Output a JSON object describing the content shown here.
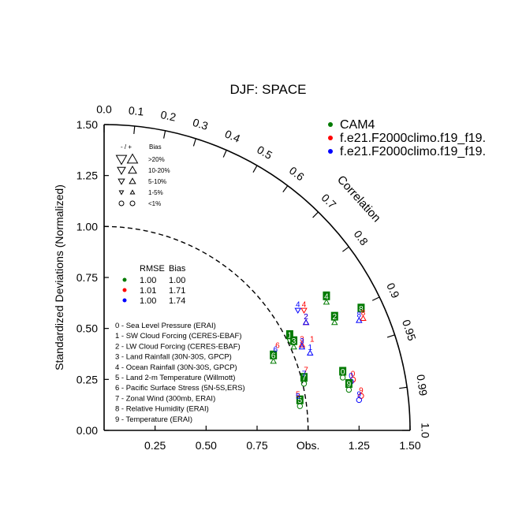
{
  "chart_data": {
    "type": "taylor",
    "title": "DJF: SPACE",
    "ylabel": "Standardized Deviations (Normalized)",
    "xlabel": "Obs.",
    "arc_label": "Correlation",
    "std_max": 1.5,
    "std_ticks": [
      {
        "value": 0.0,
        "label": "0.00"
      },
      {
        "value": 0.25,
        "label": "0.25"
      },
      {
        "value": 0.5,
        "label": "0.50"
      },
      {
        "value": 0.75,
        "label": "0.75"
      },
      {
        "value": 1.0,
        "label": "1.00"
      },
      {
        "value": 1.25,
        "label": "1.25"
      },
      {
        "value": 1.5,
        "label": "1.50"
      }
    ],
    "x_ticks": [
      {
        "value": 0.25,
        "label": "0.25"
      },
      {
        "value": 0.5,
        "label": "0.50"
      },
      {
        "value": 0.75,
        "label": "0.75"
      },
      {
        "value": 1.0,
        "label": "Obs."
      },
      {
        "value": 1.25,
        "label": "1.25"
      },
      {
        "value": 1.5,
        "label": "1.50"
      }
    ],
    "corr_ticks": [
      {
        "value": 0.0,
        "label": "0.0"
      },
      {
        "value": 0.1,
        "label": "0.1"
      },
      {
        "value": 0.2,
        "label": "0.2"
      },
      {
        "value": 0.3,
        "label": "0.3"
      },
      {
        "value": 0.4,
        "label": "0.4"
      },
      {
        "value": 0.5,
        "label": "0.5"
      },
      {
        "value": 0.6,
        "label": "0.6"
      },
      {
        "value": 0.7,
        "label": "0.7"
      },
      {
        "value": 0.8,
        "label": "0.8"
      },
      {
        "value": 0.9,
        "label": "0.9"
      },
      {
        "value": 0.95,
        "label": "0.95"
      },
      {
        "value": 0.99,
        "label": "0.99"
      },
      {
        "value": 1.0,
        "label": "1.0"
      }
    ],
    "legend": {
      "entries": [
        {
          "label": "CAM4",
          "color": "#007a00"
        },
        {
          "label": "f.e21.F2000climo.f19_f19.",
          "color": "#ff0000"
        },
        {
          "label": "f.e21.F2000climo.f19_f19.",
          "color": "#0000ff"
        }
      ]
    },
    "bias_key": {
      "header_sign": "- / +",
      "header_bias": "Bias",
      "rows": [
        {
          "label": ">20%",
          "kind": "tri",
          "size": 6.5
        },
        {
          "label": "10-20%",
          "kind": "tri",
          "size": 5
        },
        {
          "label": "5-10%",
          "kind": "tri",
          "size": 3.8
        },
        {
          "label": "1-5%",
          "kind": "tri",
          "size": 2.6
        },
        {
          "label": "<1%",
          "kind": "circle",
          "size": 3
        }
      ]
    },
    "stats_table": {
      "header_rmse": "RMSE",
      "header_bias": "Bias",
      "rows": [
        {
          "color": "#007a00",
          "rmse": "1.00",
          "bias": "1.00"
        },
        {
          "color": "#ff0000",
          "rmse": "1.01",
          "bias": "1.71"
        },
        {
          "color": "#0000ff",
          "rmse": "1.00",
          "bias": "1.74"
        }
      ]
    },
    "variables": [
      "0 - Sea Level Pressure (ERAI)",
      "1 - SW Cloud Forcing (CERES-EBAF)",
      "2 - LW Cloud Forcing (CERES-EBAF)",
      "3 - Land Rainfall (30N-30S, GPCP)",
      "4 - Ocean Rainfall (30N-30S, GPCP)",
      "5 - Land 2-m Temperature (Willmott)",
      "6 - Pacific Surface Stress (5N-5S,ERS)",
      "7 - Zonal Wind (300mb, ERAI)",
      "8 - Relative Humidity (ERAI)",
      "9 - Temperature (ERAI)"
    ],
    "points": [
      {
        "model": 0,
        "var": "0",
        "x": 1.17,
        "y": 0.29,
        "marker": "circle"
      },
      {
        "model": 1,
        "var": "0",
        "x": 1.22,
        "y": 0.28,
        "marker": "circle"
      },
      {
        "model": 2,
        "var": "0",
        "x": 1.21,
        "y": 0.27,
        "marker": "circle"
      },
      {
        "model": 0,
        "var": "1",
        "x": 0.91,
        "y": 0.47,
        "marker": "tri-down"
      },
      {
        "model": 1,
        "var": "1",
        "x": 1.02,
        "y": 0.45,
        "marker": "none"
      },
      {
        "model": 2,
        "var": "1",
        "x": 1.01,
        "y": 0.41,
        "marker": "tri-up"
      },
      {
        "model": 0,
        "var": "2",
        "x": 1.13,
        "y": 0.56,
        "marker": "tri-up"
      },
      {
        "model": 1,
        "var": "2",
        "x": 0.99,
        "y": 0.56,
        "marker": "tri-up"
      },
      {
        "model": 2,
        "var": "2",
        "x": 0.99,
        "y": 0.56,
        "marker": "tri-up"
      },
      {
        "model": 0,
        "var": "3",
        "x": 0.93,
        "y": 0.44,
        "marker": "tri-up"
      },
      {
        "model": 1,
        "var": "3",
        "x": 0.97,
        "y": 0.45,
        "marker": "tri-up"
      },
      {
        "model": 2,
        "var": "3",
        "x": 0.97,
        "y": 0.44,
        "marker": "tri-up"
      },
      {
        "model": 0,
        "var": "4",
        "x": 1.09,
        "y": 0.66,
        "marker": "tri-up"
      },
      {
        "model": 1,
        "var": "4",
        "x": 0.98,
        "y": 0.62,
        "marker": "tri-down"
      },
      {
        "model": 2,
        "var": "4",
        "x": 0.95,
        "y": 0.62,
        "marker": "tri-down"
      },
      {
        "model": 0,
        "var": "5",
        "x": 0.96,
        "y": 0.15,
        "marker": "circle"
      },
      {
        "model": 1,
        "var": "5",
        "x": 0.95,
        "y": 0.18,
        "marker": "none"
      },
      {
        "model": 2,
        "var": "5",
        "x": 0.95,
        "y": 0.17,
        "marker": "none"
      },
      {
        "model": 0,
        "var": "6",
        "x": 0.83,
        "y": 0.37,
        "marker": "tri-up"
      },
      {
        "model": 1,
        "var": "6",
        "x": 0.85,
        "y": 0.42,
        "marker": "none"
      },
      {
        "model": 2,
        "var": "6",
        "x": 0.84,
        "y": 0.4,
        "marker": "none"
      },
      {
        "model": 0,
        "var": "7",
        "x": 0.98,
        "y": 0.26,
        "marker": "circle"
      },
      {
        "model": 1,
        "var": "7",
        "x": 0.99,
        "y": 0.3,
        "marker": "none"
      },
      {
        "model": 2,
        "var": "7",
        "x": 0.98,
        "y": 0.28,
        "marker": "none"
      },
      {
        "model": 0,
        "var": "8",
        "x": 1.26,
        "y": 0.6,
        "marker": "none"
      },
      {
        "model": 1,
        "var": "8",
        "x": 1.27,
        "y": 0.58,
        "marker": "tri-up"
      },
      {
        "model": 2,
        "var": "8",
        "x": 1.25,
        "y": 0.57,
        "marker": "tri-up"
      },
      {
        "model": 0,
        "var": "9",
        "x": 1.2,
        "y": 0.23,
        "marker": "circle"
      },
      {
        "model": 1,
        "var": "9",
        "x": 1.26,
        "y": 0.2,
        "marker": "circle"
      },
      {
        "model": 2,
        "var": "9",
        "x": 1.25,
        "y": 0.18,
        "marker": "circle"
      }
    ]
  }
}
